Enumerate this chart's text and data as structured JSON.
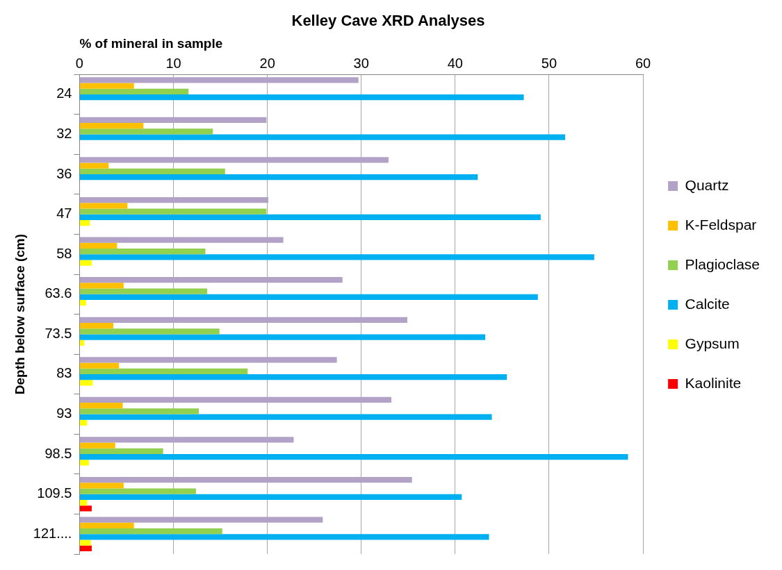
{
  "chart_data": {
    "type": "bar",
    "orientation": "horizontal",
    "title": "Kelley Cave XRD Analyses",
    "xlabel": "% of mineral in sample",
    "ylabel": "Depth below surface (cm)",
    "categories": [
      "24",
      "32",
      "36",
      "47",
      "58",
      "63.6",
      "73.5",
      "83",
      "93",
      "98.5",
      "109.5",
      "121...."
    ],
    "series": [
      {
        "name": "Quartz",
        "color": "#b3a2c7",
        "values": [
          29.7,
          19.9,
          32.9,
          20.1,
          21.7,
          28.0,
          34.9,
          27.4,
          33.2,
          22.8,
          35.4,
          25.9
        ]
      },
      {
        "name": "K-Feldspar",
        "color": "#ffc000",
        "values": [
          5.8,
          6.8,
          3.1,
          5.1,
          4.0,
          4.7,
          3.6,
          4.2,
          4.6,
          3.8,
          4.7,
          5.8
        ]
      },
      {
        "name": "Plagioclase",
        "color": "#92d050",
        "values": [
          11.6,
          14.2,
          15.5,
          19.9,
          13.4,
          13.6,
          14.9,
          17.9,
          12.7,
          8.9,
          12.4,
          15.2
        ]
      },
      {
        "name": "Calcite",
        "color": "#00b0f0",
        "values": [
          47.3,
          51.7,
          42.4,
          49.1,
          54.8,
          48.8,
          43.2,
          45.5,
          43.9,
          58.4,
          40.7,
          43.6
        ]
      },
      {
        "name": "Gypsum",
        "color": "#ffff00",
        "values": [
          0,
          0,
          0,
          1.1,
          1.3,
          0.7,
          0.5,
          1.4,
          0.8,
          1.0,
          0.8,
          1.2
        ]
      },
      {
        "name": "Kaolinite",
        "color": "#ff0000",
        "values": [
          0,
          0,
          0,
          0,
          0,
          0,
          0,
          0,
          0,
          0,
          1.3,
          1.3
        ]
      }
    ],
    "xlim": [
      0,
      60
    ],
    "xticks": [
      0,
      10,
      20,
      30,
      40,
      50,
      60
    ],
    "grid": "x",
    "legend": "right"
  }
}
